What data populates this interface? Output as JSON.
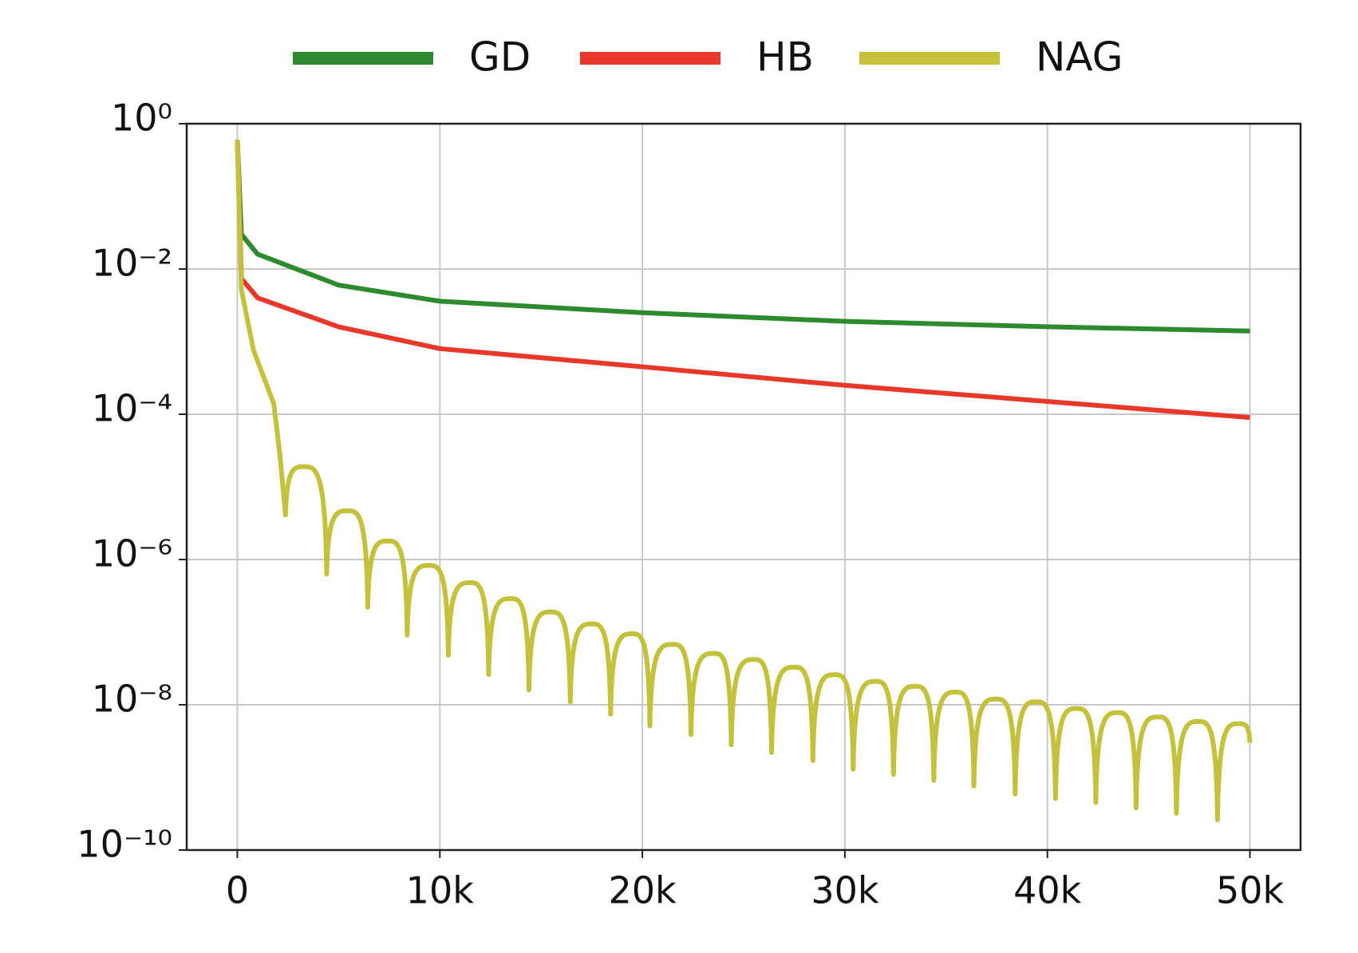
{
  "chart_data": {
    "type": "line",
    "yscale": "log",
    "grid": true,
    "legend": "top",
    "xlim": [
      -2500,
      52500
    ],
    "xticks": [
      0,
      {
        "value": 10000,
        "label": "10k"
      },
      {
        "value": 20000,
        "label": "20k"
      },
      {
        "value": 30000,
        "label": "30k"
      },
      {
        "value": 40000,
        "label": "40k"
      },
      {
        "value": 50000,
        "label": "50k"
      }
    ],
    "ylim": [
      1e-10,
      1
    ],
    "yticks": [
      {
        "value": 1,
        "label": "10⁰"
      },
      {
        "value": 0.01,
        "label": "10⁻²"
      },
      {
        "value": 0.0001,
        "label": "10⁻⁴"
      },
      {
        "value": 1e-06,
        "label": "10⁻⁶"
      },
      {
        "value": 1e-08,
        "label": "10⁻⁸"
      },
      {
        "value": 1e-10,
        "label": "10⁻¹⁰"
      }
    ],
    "series": [
      {
        "name": "GD",
        "color": "#2e8a2e",
        "x": [
          0,
          200,
          1000,
          5000,
          10000,
          20000,
          30000,
          40000,
          50000
        ],
        "values": [
          0.6,
          0.03,
          0.016,
          0.006,
          0.0036,
          0.0025,
          0.0019,
          0.0016,
          0.0014
        ]
      },
      {
        "name": "HB",
        "color": "#e8382a",
        "x": [
          0,
          200,
          1000,
          5000,
          10000,
          20000,
          30000,
          40000,
          50000
        ],
        "values": [
          0.6,
          0.0074,
          0.004,
          0.0016,
          0.0008,
          0.00045,
          0.00025,
          0.00015,
          9e-05
        ]
      },
      {
        "name": "NAG",
        "color": "#c4c23c",
        "x": [
          0,
          200,
          800,
          1800,
          2100,
          2380,
          3290,
          4410,
          5450,
          6440,
          7440,
          8390,
          9470,
          10420,
          11500,
          12410,
          13500,
          14400,
          15480,
          16440,
          17500,
          18430,
          19500,
          20370,
          21500,
          22400,
          23530,
          24390,
          25520,
          26380,
          27510,
          28420,
          29500,
          30410,
          31530,
          32400,
          33480,
          34390,
          35470,
          36370,
          37460,
          38410,
          39450,
          40400,
          41440,
          42390,
          43470,
          44380,
          45470,
          46370,
          47460,
          48400,
          49440,
          50000
        ],
        "values": [
          0.6,
          0.0052,
          0.00076,
          0.00014,
          2.8e-05,
          4.1e-06,
          1.9e-05,
          6.3e-07,
          4.7e-06,
          2.2e-07,
          1.8e-06,
          9.1e-08,
          8.3e-07,
          4.8e-08,
          4.8e-07,
          2.6e-08,
          2.9e-07,
          1.6e-08,
          1.9e-07,
          1.1e-08,
          1.3e-07,
          7.4e-09,
          9.5e-08,
          5.1e-09,
          6.8e-08,
          3.9e-09,
          5.1e-08,
          2.8e-09,
          4.2e-08,
          2.2e-09,
          3.3e-08,
          1.7e-09,
          2.6e-08,
          1.3e-09,
          2.1e-08,
          1.1e-09,
          1.8e-08,
          9.1e-10,
          1.5e-08,
          7.6e-10,
          1.2e-08,
          5.9e-10,
          1.1e-08,
          5.1e-10,
          8.9e-09,
          4.5e-10,
          7.8e-09,
          3.8e-10,
          6.8e-09,
          3.2e-10,
          5.9e-09,
          2.6e-10,
          5.5e-09,
          3e-09
        ]
      }
    ]
  }
}
